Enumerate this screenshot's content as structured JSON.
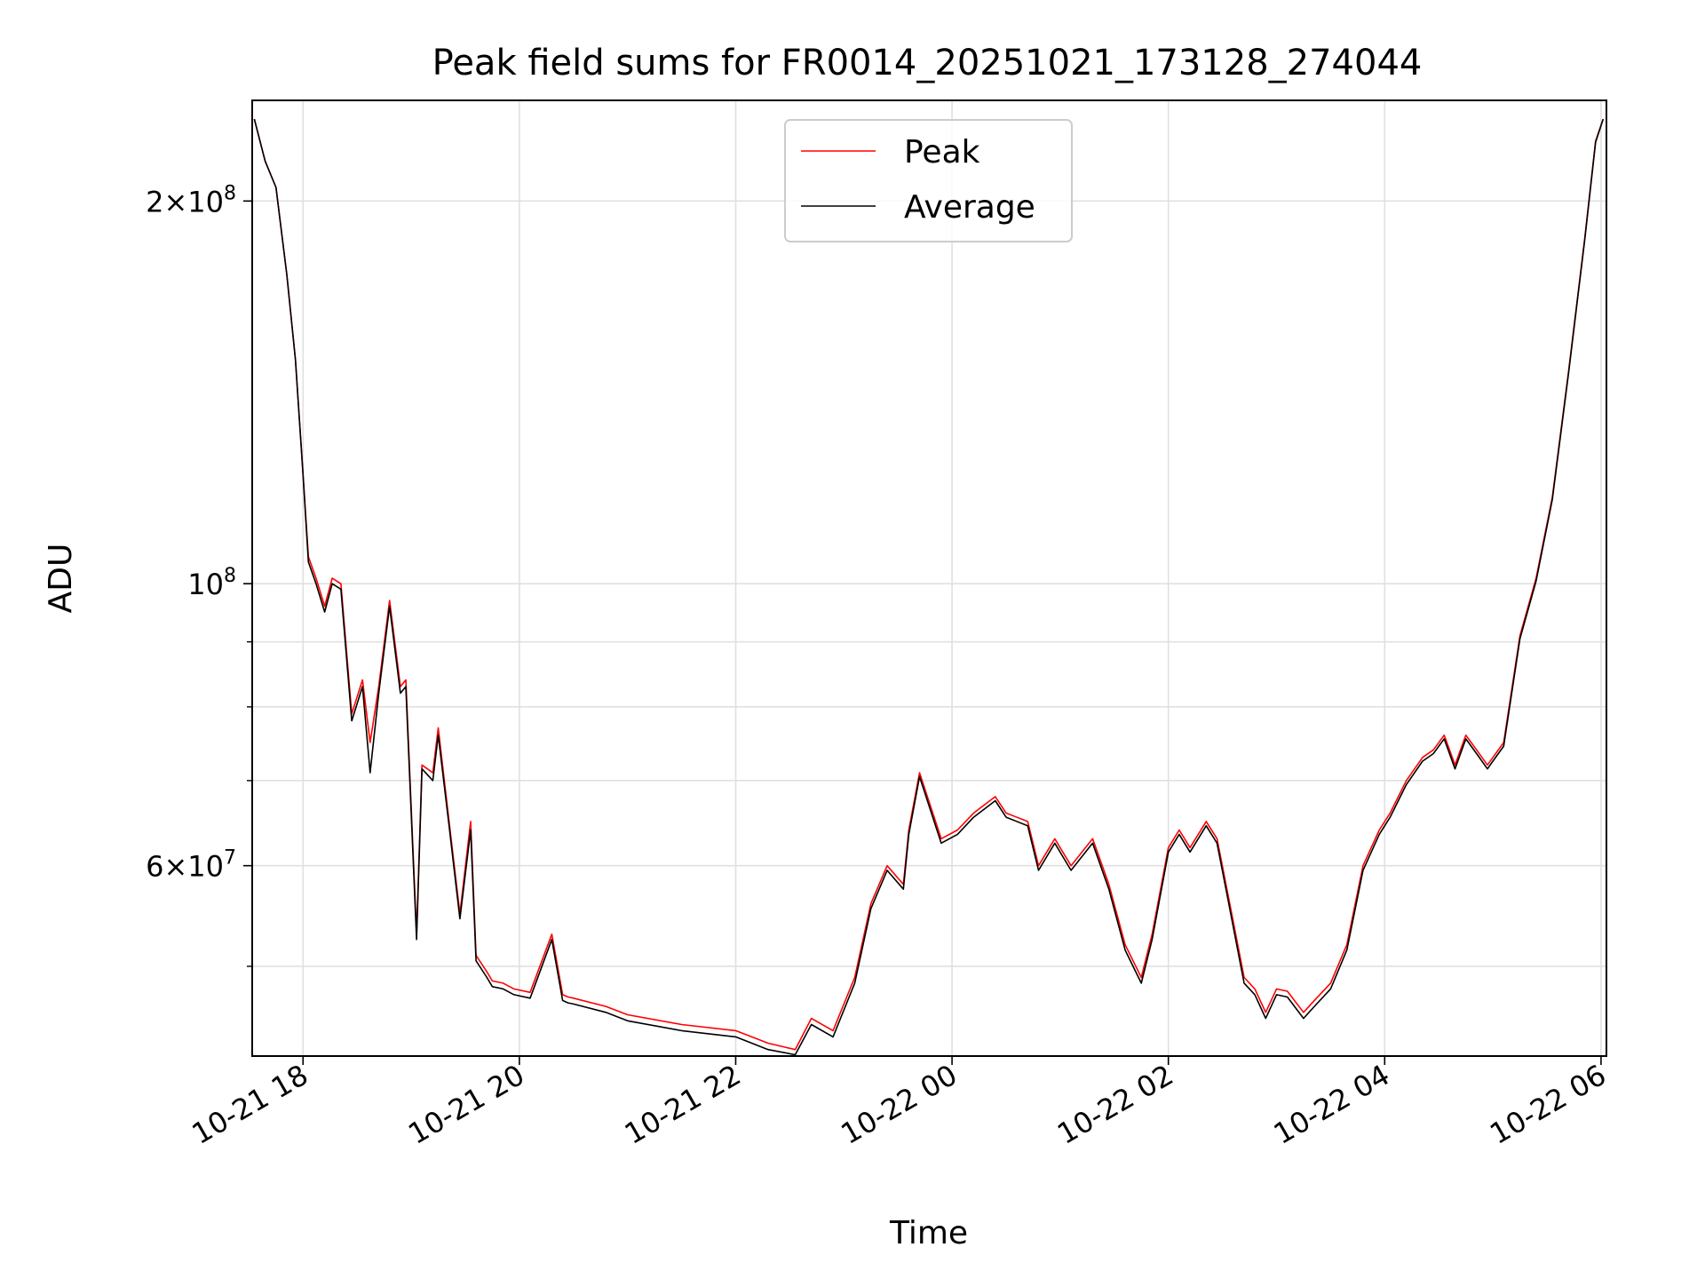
{
  "chart_data": {
    "type": "line",
    "title": "Peak field sums for FR0014_20251021_173128_274044",
    "xlabel": "Time",
    "ylabel": "ADU",
    "yscale": "log",
    "ylim": [
      42500000,
      240000000
    ],
    "xlim_hours": [
      17.53,
      30.05
    ],
    "grid": true,
    "legend_position": "top-center",
    "x_ticks": [
      {
        "hour": 18,
        "label": "10-21 18"
      },
      {
        "hour": 20,
        "label": "10-21 20"
      },
      {
        "hour": 22,
        "label": "10-21 22"
      },
      {
        "hour": 24,
        "label": "10-22 00"
      },
      {
        "hour": 26,
        "label": "10-22 02"
      },
      {
        "hour": 28,
        "label": "10-22 04"
      },
      {
        "hour": 30,
        "label": "10-22 06"
      }
    ],
    "y_major_ticks": [
      {
        "value": 200000000,
        "mantissa": "2",
        "exponent": "8"
      },
      {
        "value": 100000000,
        "mantissa": "",
        "exponent": "8"
      },
      {
        "value": 60000000,
        "mantissa": "6",
        "exponent": "7"
      }
    ],
    "y_minor_ticks": [
      50000000,
      70000000,
      80000000,
      90000000
    ],
    "x_hours": [
      17.55,
      17.65,
      17.75,
      17.85,
      17.93,
      18.0,
      18.05,
      18.12,
      18.2,
      18.27,
      18.35,
      18.45,
      18.55,
      18.62,
      18.7,
      18.8,
      18.9,
      18.95,
      19.05,
      19.1,
      19.2,
      19.25,
      19.35,
      19.45,
      19.55,
      19.6,
      19.7,
      19.75,
      19.85,
      19.95,
      20.1,
      20.3,
      20.4,
      20.45,
      20.5,
      20.8,
      21.0,
      21.5,
      22.0,
      22.3,
      22.55,
      22.7,
      22.9,
      23.1,
      23.25,
      23.4,
      23.55,
      23.6,
      23.7,
      23.9,
      24.05,
      24.2,
      24.4,
      24.5,
      24.7,
      24.8,
      24.95,
      25.1,
      25.3,
      25.45,
      25.6,
      25.75,
      25.85,
      26.0,
      26.1,
      26.2,
      26.35,
      26.45,
      26.55,
      26.7,
      26.8,
      26.9,
      27.0,
      27.1,
      27.25,
      27.35,
      27.5,
      27.65,
      27.8,
      27.95,
      28.05,
      28.2,
      28.35,
      28.45,
      28.55,
      28.65,
      28.75,
      28.85,
      28.95,
      29.0,
      29.1,
      29.25,
      29.4,
      29.55,
      29.7,
      29.85,
      29.95,
      30.02
    ],
    "series": [
      {
        "name": "Peak",
        "color": "#ff0000",
        "values": [
          232000000,
          215000000,
          205000000,
          175000000,
          150000000,
          122000000,
          105000000,
          101000000,
          96000000,
          101000000,
          100000000,
          79000000,
          84000000,
          75000000,
          83000000,
          97000000,
          83000000,
          84000000,
          53000000,
          72000000,
          71000000,
          77000000,
          65000000,
          55000000,
          65000000,
          51000000,
          49500000,
          48700000,
          48500000,
          48000000,
          47700000,
          53000000,
          47500000,
          47300000,
          47200000,
          46500000,
          45800000,
          45000000,
          44500000,
          43500000,
          43000000,
          45500000,
          44500000,
          49000000,
          56000000,
          60000000,
          58000000,
          64000000,
          71000000,
          63000000,
          64000000,
          66000000,
          68000000,
          66000000,
          65000000,
          60000000,
          63000000,
          60000000,
          63000000,
          58000000,
          52000000,
          49000000,
          53000000,
          62000000,
          64000000,
          62000000,
          65000000,
          63000000,
          57000000,
          49000000,
          48000000,
          46000000,
          48000000,
          47800000,
          46000000,
          47000000,
          48500000,
          52000000,
          60000000,
          64000000,
          66000000,
          70000000,
          73000000,
          74000000,
          76000000,
          72000000,
          76000000,
          74000000,
          72000000,
          73000000,
          75000000,
          91000000,
          101000000,
          117000000,
          147000000,
          187000000,
          223000000,
          232000000
        ]
      },
      {
        "name": "Average",
        "color": "#000000",
        "values": [
          232000000,
          215000000,
          205000000,
          175000000,
          150000000,
          122000000,
          104000000,
          100000000,
          95000000,
          100000000,
          99000000,
          78000000,
          83000000,
          71000000,
          82000000,
          96000000,
          82000000,
          83000000,
          52500000,
          71500000,
          70000000,
          76000000,
          64500000,
          54500000,
          64000000,
          50500000,
          49000000,
          48200000,
          48000000,
          47500000,
          47200000,
          52500000,
          47000000,
          46800000,
          46700000,
          46000000,
          45300000,
          44500000,
          44000000,
          43000000,
          42600000,
          45000000,
          44000000,
          48500000,
          55500000,
          59500000,
          57500000,
          63500000,
          70500000,
          62500000,
          63500000,
          65500000,
          67500000,
          65500000,
          64500000,
          59500000,
          62500000,
          59500000,
          62500000,
          57500000,
          51500000,
          48500000,
          52500000,
          61500000,
          63500000,
          61500000,
          64500000,
          62500000,
          56500000,
          48500000,
          47500000,
          45500000,
          47500000,
          47300000,
          45500000,
          46500000,
          48000000,
          51500000,
          59500000,
          63500000,
          65500000,
          69500000,
          72500000,
          73500000,
          75500000,
          71500000,
          75500000,
          73500000,
          71500000,
          72500000,
          74500000,
          90500000,
          100500000,
          116500000,
          146500000,
          186500000,
          222500000,
          232000000
        ]
      }
    ]
  }
}
